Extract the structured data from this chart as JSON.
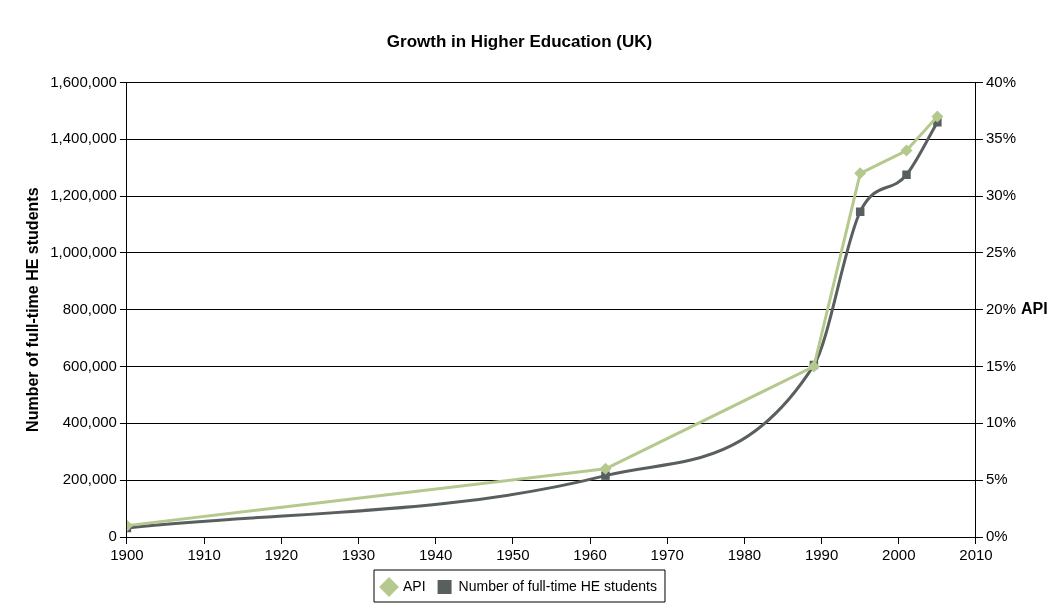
{
  "chart_data": {
    "type": "line",
    "title": "Growth in Higher Education (UK)",
    "ylabel": "Number of full-time HE students",
    "y2label": "API",
    "xlim": [
      1900,
      2010
    ],
    "xticks": [
      1900,
      1910,
      1920,
      1930,
      1940,
      1950,
      1960,
      1970,
      1980,
      1990,
      2000,
      2010
    ],
    "ylim": [
      0,
      1600000
    ],
    "yticks": [
      {
        "value": 0,
        "label": "0"
      },
      {
        "value": 200000,
        "label": "200,000"
      },
      {
        "value": 400000,
        "label": "400,000"
      },
      {
        "value": 600000,
        "label": "600,000"
      },
      {
        "value": 800000,
        "label": "800,000"
      },
      {
        "value": 1000000,
        "label": "1,000,000"
      },
      {
        "value": 1200000,
        "label": "1,200,000"
      },
      {
        "value": 1400000,
        "label": "1,400,000"
      },
      {
        "value": 1600000,
        "label": "1,600,000"
      }
    ],
    "y2lim": [
      0,
      40
    ],
    "y2ticks": [
      {
        "value": 0,
        "label": "0%"
      },
      {
        "value": 5,
        "label": "5%"
      },
      {
        "value": 10,
        "label": "10%"
      },
      {
        "value": 15,
        "label": "15%"
      },
      {
        "value": 20,
        "label": "20%"
      },
      {
        "value": 25,
        "label": "25%"
      },
      {
        "value": 30,
        "label": "30%"
      },
      {
        "value": 35,
        "label": "35%"
      },
      {
        "value": 40,
        "label": "40%"
      }
    ],
    "grid": "y",
    "legend": "bottom",
    "series": [
      {
        "name": "Number of full-time HE students",
        "color": "#595f5f",
        "marker": "square",
        "x": [
          1900,
          1962,
          1989,
          1995,
          2001,
          2005
        ],
        "values": [
          32000,
          216000,
          605000,
          1145000,
          1275000,
          1460000
        ]
      },
      {
        "name": "API",
        "color": "#b5c98e",
        "marker": "diamond",
        "axis": "y2",
        "x": [
          1900,
          1962,
          1989,
          1995,
          2001,
          2005
        ],
        "values": [
          1,
          6,
          15,
          32,
          34,
          37
        ]
      }
    ]
  }
}
